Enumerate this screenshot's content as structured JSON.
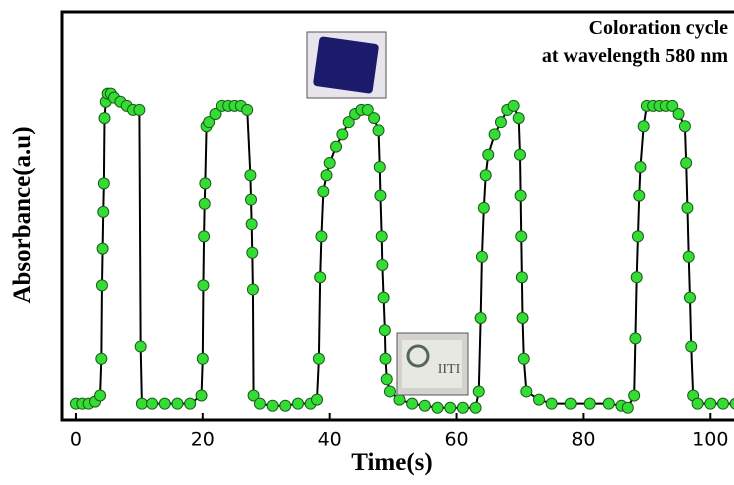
{
  "chart_data": {
    "type": "line",
    "annotations": [
      "Coloration cycle",
      "at wavelength 580 nm",
      "IITI"
    ],
    "xlabel": "Time(s)",
    "ylabel": "Absorbance(a.u)",
    "xlim": [
      -2.2,
      105
    ],
    "ylim": [
      0,
      1
    ],
    "xticks": [
      0,
      20,
      40,
      60,
      80,
      100
    ],
    "line_color": "#000000",
    "marker_color": "#33dd33",
    "x": [
      0,
      1,
      2,
      3,
      3.8,
      4,
      4.1,
      4.2,
      4.3,
      4.4,
      4.5,
      4.7,
      5,
      5.5,
      6,
      7,
      8,
      9,
      10,
      10.2,
      10.4,
      12,
      14,
      16,
      18,
      19.8,
      20,
      20.1,
      20.2,
      20.3,
      20.4,
      20.6,
      21,
      22,
      23,
      24,
      25,
      26,
      27,
      27.5,
      27.6,
      27.7,
      27.8,
      27.9,
      28,
      29,
      31,
      33,
      35,
      37,
      38,
      38.3,
      38.5,
      38.7,
      39,
      39.5,
      40,
      41,
      42,
      43,
      44,
      45,
      46,
      47,
      47.7,
      47.9,
      48,
      48.2,
      48.3,
      48.5,
      48.7,
      48.8,
      49,
      49.5,
      51,
      53,
      55,
      57,
      59,
      61,
      63,
      63.5,
      63.8,
      64,
      64.3,
      64.6,
      65,
      66,
      67,
      68,
      69,
      69.8,
      70,
      70.1,
      70.2,
      70.3,
      70.4,
      70.6,
      71,
      73,
      75,
      78,
      81,
      84,
      86,
      87,
      88,
      88.2,
      88.4,
      88.6,
      88.8,
      89,
      89.5,
      90,
      91,
      92,
      93,
      94,
      95,
      96,
      96.2,
      96.4,
      96.6,
      96.8,
      97,
      97.3,
      98,
      100,
      102,
      104
    ],
    "series": [
      {
        "values": [
          0.04,
          0.04,
          0.04,
          0.045,
          0.06,
          0.15,
          0.33,
          0.42,
          0.51,
          0.58,
          0.74,
          0.78,
          0.8,
          0.8,
          0.79,
          0.78,
          0.77,
          0.76,
          0.76,
          0.18,
          0.04,
          0.04,
          0.04,
          0.04,
          0.04,
          0.06,
          0.15,
          0.33,
          0.45,
          0.53,
          0.58,
          0.72,
          0.73,
          0.75,
          0.77,
          0.77,
          0.77,
          0.77,
          0.76,
          0.6,
          0.54,
          0.48,
          0.41,
          0.32,
          0.06,
          0.04,
          0.035,
          0.035,
          0.04,
          0.04,
          0.05,
          0.15,
          0.35,
          0.45,
          0.56,
          0.6,
          0.63,
          0.67,
          0.7,
          0.73,
          0.75,
          0.76,
          0.76,
          0.74,
          0.71,
          0.62,
          0.55,
          0.45,
          0.38,
          0.3,
          0.22,
          0.15,
          0.1,
          0.07,
          0.05,
          0.04,
          0.035,
          0.03,
          0.03,
          0.03,
          0.03,
          0.07,
          0.25,
          0.4,
          0.52,
          0.6,
          0.65,
          0.7,
          0.73,
          0.76,
          0.77,
          0.74,
          0.65,
          0.55,
          0.45,
          0.35,
          0.25,
          0.15,
          0.07,
          0.05,
          0.04,
          0.04,
          0.04,
          0.04,
          0.035,
          0.03,
          0.06,
          0.2,
          0.35,
          0.45,
          0.55,
          0.62,
          0.72,
          0.77,
          0.77,
          0.77,
          0.77,
          0.77,
          0.75,
          0.72,
          0.63,
          0.52,
          0.4,
          0.3,
          0.18,
          0.06,
          0.04,
          0.04,
          0.04,
          0.04
        ]
      }
    ]
  }
}
